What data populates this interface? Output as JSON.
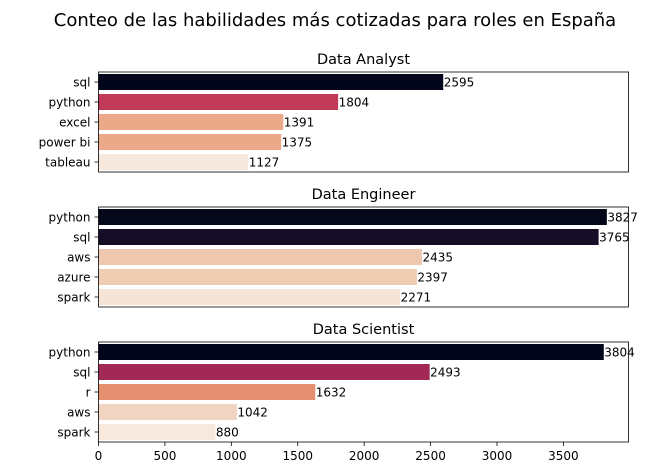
{
  "title": "Conteo de las habilidades más cotizadas para roles en España",
  "chart_data": [
    {
      "type": "bar",
      "orientation": "horizontal",
      "title": "Data Analyst",
      "categories": [
        "sql",
        "python",
        "excel",
        "power bi",
        "tableau"
      ],
      "values": [
        2595,
        1804,
        1391,
        1375,
        1127
      ],
      "colors": [
        "#03051a",
        "#c23a5a",
        "#eba98a",
        "#eba98a",
        "#f7e8dd"
      ],
      "xlim": [
        0,
        3990
      ],
      "show_xaxis": false
    },
    {
      "type": "bar",
      "orientation": "horizontal",
      "title": "Data Engineer",
      "categories": [
        "python",
        "sql",
        "aws",
        "azure",
        "spark"
      ],
      "values": [
        3827,
        3765,
        2435,
        2397,
        2271
      ],
      "colors": [
        "#040818",
        "#150e26",
        "#eec8ae",
        "#f0ccb3",
        "#f6e4d7"
      ],
      "xlim": [
        0,
        3990
      ],
      "show_xaxis": false
    },
    {
      "type": "bar",
      "orientation": "horizontal",
      "title": "Data Scientist",
      "categories": [
        "python",
        "sql",
        "r",
        "aws",
        "spark"
      ],
      "values": [
        3804,
        2493,
        1632,
        1042,
        880
      ],
      "colors": [
        "#03051a",
        "#a22856",
        "#e48f70",
        "#f2d4c3",
        "#f8e9de"
      ],
      "xlim": [
        0,
        3990
      ],
      "xticks": [
        0,
        500,
        1000,
        1500,
        2000,
        2500,
        3000,
        3500
      ],
      "show_xaxis": true
    }
  ]
}
